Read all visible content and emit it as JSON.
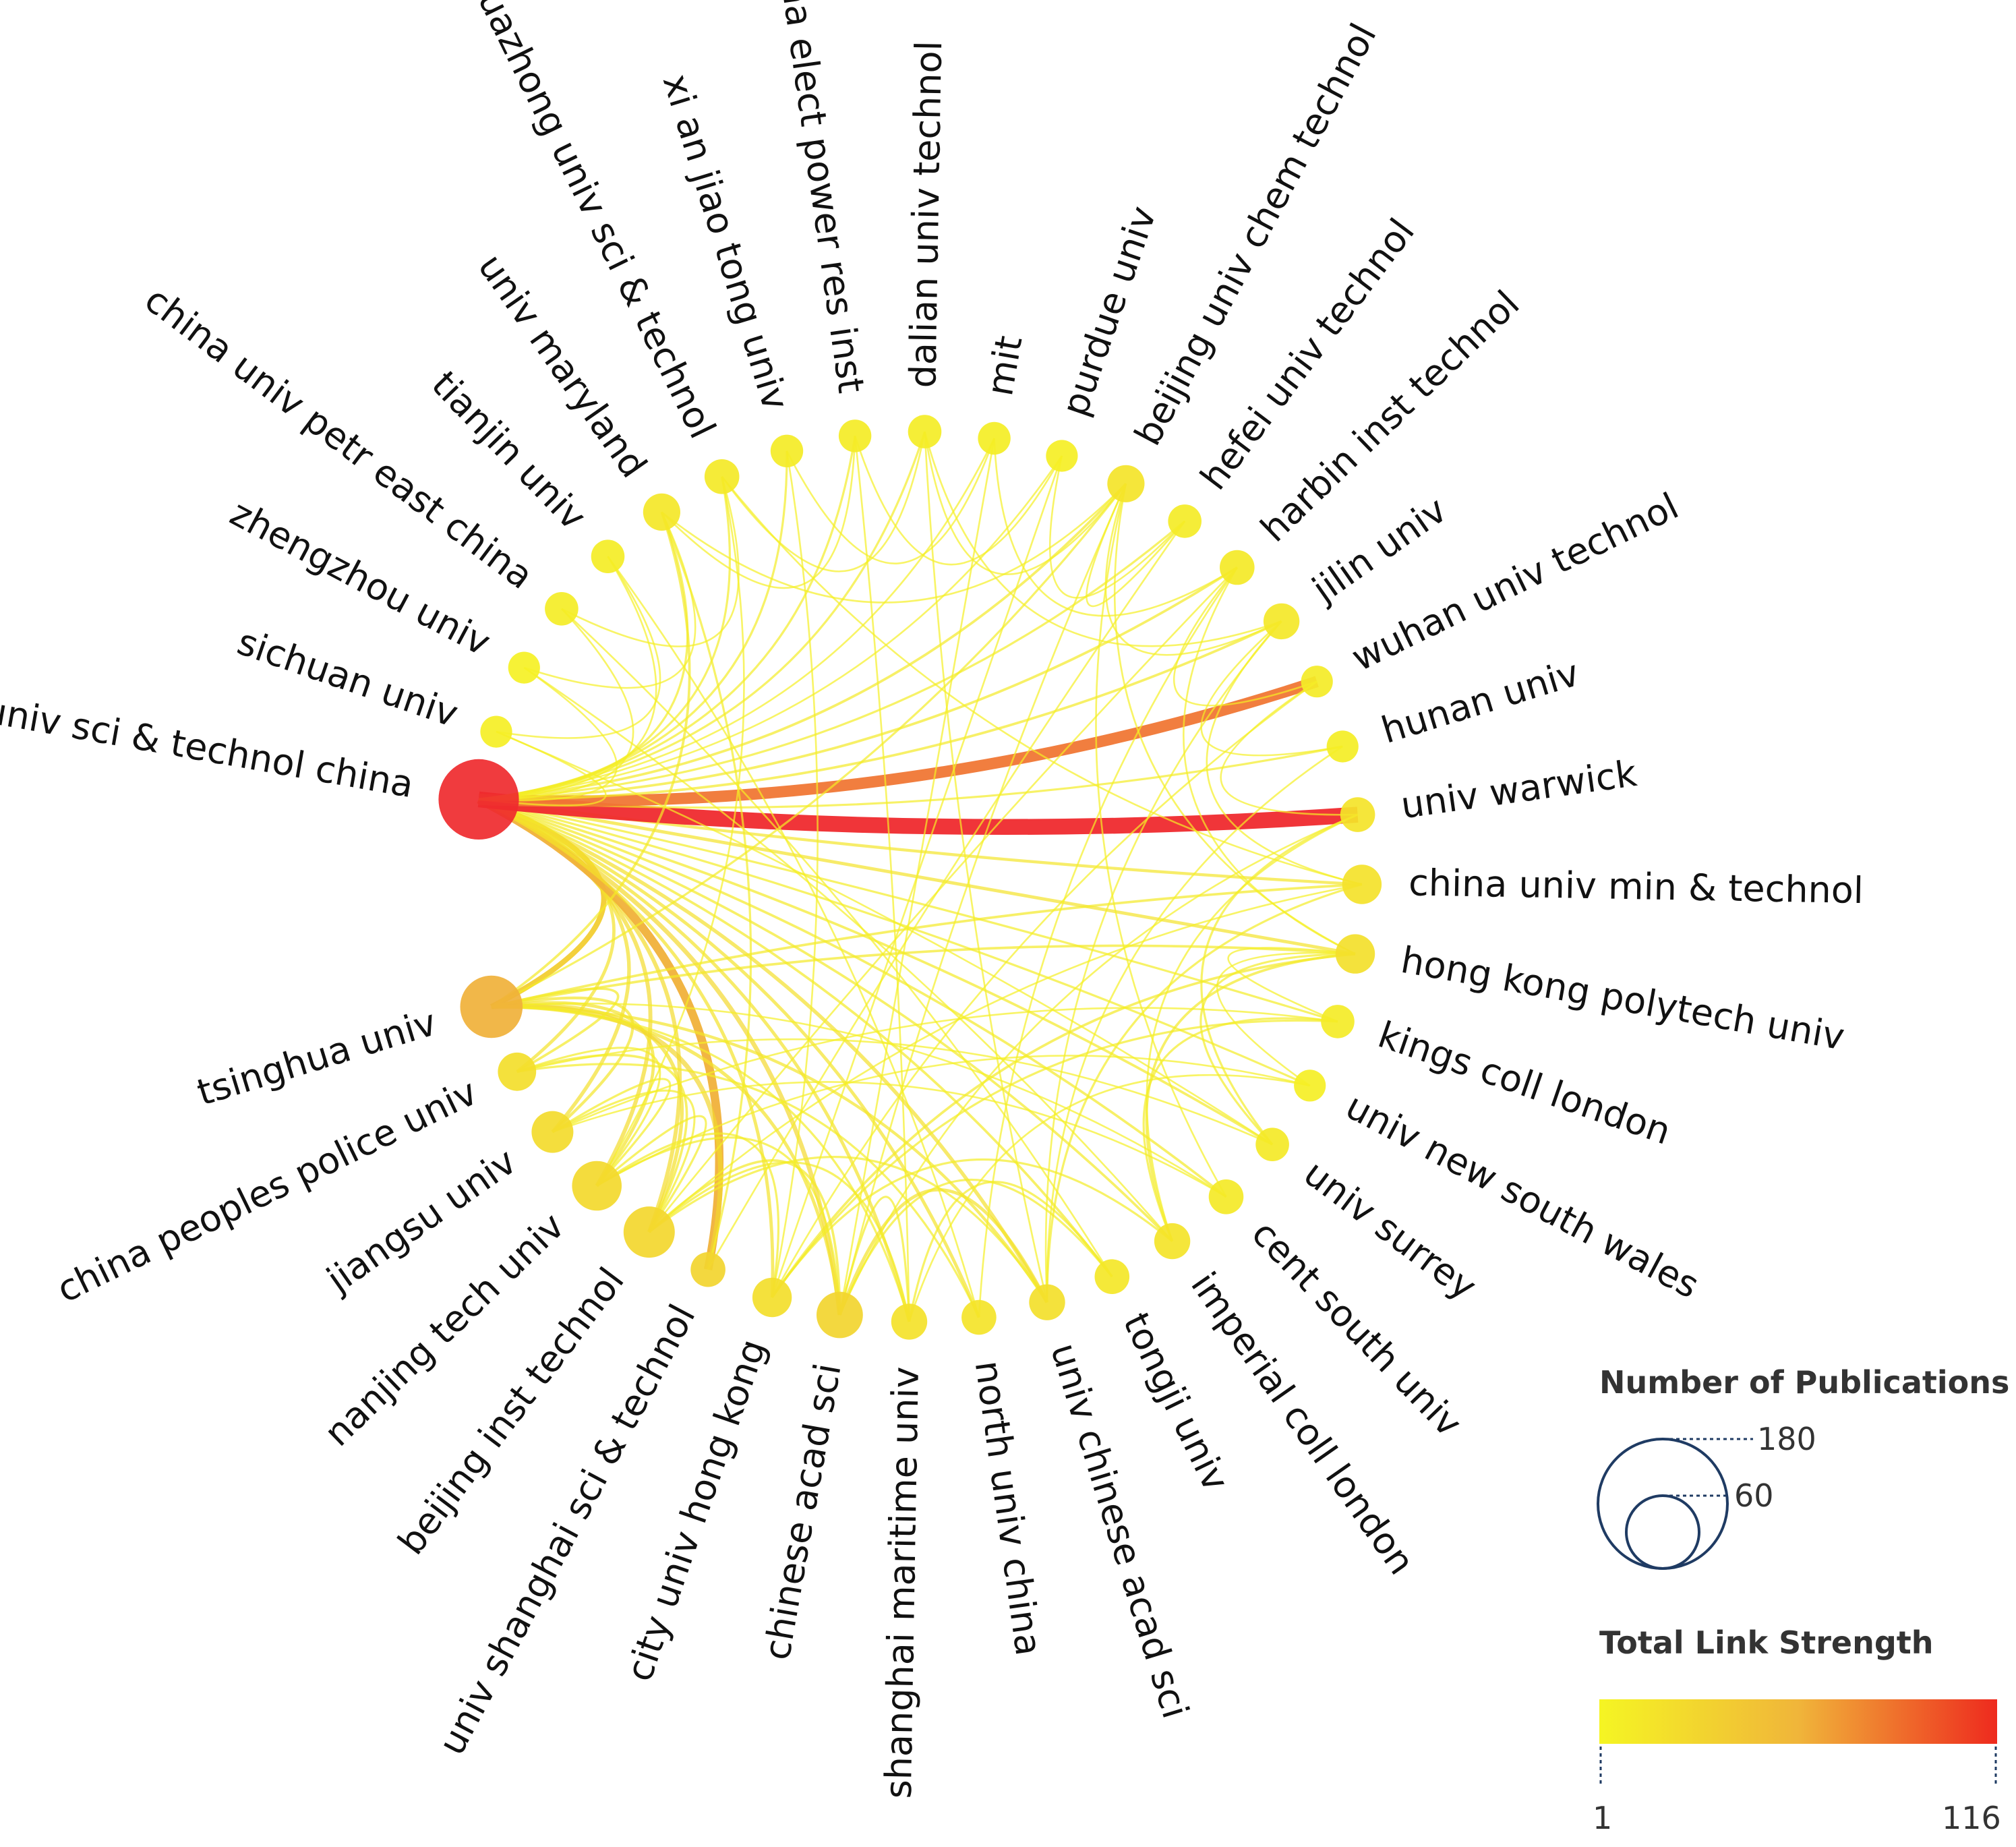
{
  "colors": {
    "low": "#f5f523",
    "mid": "#f0b53a",
    "high": "#ef3a4a",
    "legend_outline": "#1f3b63"
  },
  "chart_data": {
    "type": "chord",
    "nodes": [
      {
        "name": "univ sci & technol china",
        "size": 180,
        "strength": 116
      },
      {
        "name": "sichuan univ",
        "size": 8,
        "strength": 6
      },
      {
        "name": "zhengzhou univ",
        "size": 8,
        "strength": 5
      },
      {
        "name": "china univ petr east china",
        "size": 10,
        "strength": 8
      },
      {
        "name": "tianjin univ",
        "size": 10,
        "strength": 8
      },
      {
        "name": "univ maryland",
        "size": 16,
        "strength": 14
      },
      {
        "name": "huazhong univ sci & technol",
        "size": 12,
        "strength": 12
      },
      {
        "name": "xi an jiao tong univ",
        "size": 9,
        "strength": 9
      },
      {
        "name": "china elect power res inst",
        "size": 9,
        "strength": 9
      },
      {
        "name": "dalian univ technol",
        "size": 10,
        "strength": 8
      },
      {
        "name": "mit",
        "size": 9,
        "strength": 7
      },
      {
        "name": "purdue univ",
        "size": 8,
        "strength": 6
      },
      {
        "name": "beijing univ chem technol",
        "size": 16,
        "strength": 16
      },
      {
        "name": "hefei univ technol",
        "size": 10,
        "strength": 10
      },
      {
        "name": "harbin inst technol",
        "size": 12,
        "strength": 12
      },
      {
        "name": "jilin univ",
        "size": 14,
        "strength": 13
      },
      {
        "name": "wuhan univ technol",
        "size": 8,
        "strength": 10
      },
      {
        "name": "hunan univ",
        "size": 8,
        "strength": 7
      },
      {
        "name": "univ warwick",
        "size": 12,
        "strength": 16
      },
      {
        "name": "china univ min & technol",
        "size": 20,
        "strength": 18
      },
      {
        "name": "hong kong polytech univ",
        "size": 20,
        "strength": 20
      },
      {
        "name": "kings coll london",
        "size": 10,
        "strength": 10
      },
      {
        "name": "univ new south wales",
        "size": 8,
        "strength": 6
      },
      {
        "name": "univ surrey",
        "size": 10,
        "strength": 12
      },
      {
        "name": "cent south univ",
        "size": 12,
        "strength": 12
      },
      {
        "name": "imperial coll london",
        "size": 14,
        "strength": 16
      },
      {
        "name": "tongji univ",
        "size": 12,
        "strength": 14
      },
      {
        "name": "univ chinese acad sci",
        "size": 14,
        "strength": 20
      },
      {
        "name": "north univ china",
        "size": 12,
        "strength": 16
      },
      {
        "name": "shanghai maritime univ",
        "size": 14,
        "strength": 18
      },
      {
        "name": "chinese acad sci",
        "size": 36,
        "strength": 30
      },
      {
        "name": "city univ hong kong",
        "size": 20,
        "strength": 22
      },
      {
        "name": "univ shanghai sci & technol",
        "size": 12,
        "strength": 30
      },
      {
        "name": "beijing inst technol",
        "size": 50,
        "strength": 28
      },
      {
        "name": "nanjing tech univ",
        "size": 45,
        "strength": 26
      },
      {
        "name": "jiangsu univ",
        "size": 25,
        "strength": 24
      },
      {
        "name": "china peoples police univ",
        "size": 18,
        "strength": 22
      },
      {
        "name": "tsinghua univ",
        "size": 90,
        "strength": 60
      }
    ],
    "links": [
      {
        "s": 0,
        "t": 37,
        "w": 12
      },
      {
        "s": 0,
        "t": 36,
        "w": 6
      },
      {
        "s": 0,
        "t": 35,
        "w": 7
      },
      {
        "s": 0,
        "t": 34,
        "w": 8
      },
      {
        "s": 0,
        "t": 33,
        "w": 8
      },
      {
        "s": 0,
        "t": 32,
        "w": 20
      },
      {
        "s": 0,
        "t": 31,
        "w": 6
      },
      {
        "s": 0,
        "t": 30,
        "w": 9
      },
      {
        "s": 0,
        "t": 29,
        "w": 6
      },
      {
        "s": 0,
        "t": 28,
        "w": 6
      },
      {
        "s": 0,
        "t": 27,
        "w": 7
      },
      {
        "s": 0,
        "t": 26,
        "w": 4
      },
      {
        "s": 0,
        "t": 25,
        "w": 4
      },
      {
        "s": 0,
        "t": 24,
        "w": 4
      },
      {
        "s": 0,
        "t": 23,
        "w": 4
      },
      {
        "s": 0,
        "t": 22,
        "w": 3
      },
      {
        "s": 0,
        "t": 21,
        "w": 3
      },
      {
        "s": 0,
        "t": 20,
        "w": 6
      },
      {
        "s": 0,
        "t": 19,
        "w": 5
      },
      {
        "s": 0,
        "t": 18,
        "w": 40
      },
      {
        "s": 0,
        "t": 17,
        "w": 3
      },
      {
        "s": 0,
        "t": 16,
        "w": 28
      },
      {
        "s": 0,
        "t": 15,
        "w": 4
      },
      {
        "s": 0,
        "t": 14,
        "w": 4
      },
      {
        "s": 0,
        "t": 13,
        "w": 3
      },
      {
        "s": 0,
        "t": 12,
        "w": 4
      },
      {
        "s": 0,
        "t": 11,
        "w": 2
      },
      {
        "s": 0,
        "t": 10,
        "w": 2
      },
      {
        "s": 0,
        "t": 9,
        "w": 3
      },
      {
        "s": 0,
        "t": 8,
        "w": 3
      },
      {
        "s": 0,
        "t": 7,
        "w": 3
      },
      {
        "s": 0,
        "t": 6,
        "w": 3
      },
      {
        "s": 0,
        "t": 5,
        "w": 3
      },
      {
        "s": 0,
        "t": 4,
        "w": 2
      },
      {
        "s": 0,
        "t": 3,
        "w": 2
      },
      {
        "s": 0,
        "t": 2,
        "w": 2
      },
      {
        "s": 0,
        "t": 1,
        "w": 2
      },
      {
        "s": 37,
        "t": 35,
        "w": 5
      },
      {
        "s": 37,
        "t": 34,
        "w": 6
      },
      {
        "s": 37,
        "t": 33,
        "w": 7
      },
      {
        "s": 37,
        "t": 32,
        "w": 10
      },
      {
        "s": 37,
        "t": 30,
        "w": 6
      },
      {
        "s": 37,
        "t": 27,
        "w": 5
      },
      {
        "s": 37,
        "t": 20,
        "w": 4
      },
      {
        "s": 37,
        "t": 19,
        "w": 4
      },
      {
        "s": 37,
        "t": 12,
        "w": 3
      },
      {
        "s": 37,
        "t": 5,
        "w": 4
      },
      {
        "s": 37,
        "t": 36,
        "w": 4
      },
      {
        "s": 37,
        "t": 29,
        "w": 3
      },
      {
        "s": 36,
        "t": 33,
        "w": 4
      },
      {
        "s": 36,
        "t": 34,
        "w": 3
      },
      {
        "s": 36,
        "t": 28,
        "w": 3
      },
      {
        "s": 35,
        "t": 34,
        "w": 3
      },
      {
        "s": 35,
        "t": 33,
        "w": 3
      },
      {
        "s": 35,
        "t": 24,
        "w": 2
      },
      {
        "s": 34,
        "t": 33,
        "w": 3
      },
      {
        "s": 34,
        "t": 31,
        "w": 3
      },
      {
        "s": 34,
        "t": 30,
        "w": 3
      },
      {
        "s": 33,
        "t": 30,
        "w": 4
      },
      {
        "s": 33,
        "t": 27,
        "w": 3
      },
      {
        "s": 33,
        "t": 29,
        "w": 3
      },
      {
        "s": 31,
        "t": 20,
        "w": 4
      },
      {
        "s": 31,
        "t": 21,
        "w": 3
      },
      {
        "s": 31,
        "t": 25,
        "w": 3
      },
      {
        "s": 30,
        "t": 27,
        "w": 6
      },
      {
        "s": 30,
        "t": 29,
        "w": 3
      },
      {
        "s": 30,
        "t": 26,
        "w": 3
      },
      {
        "s": 29,
        "t": 26,
        "w": 3
      },
      {
        "s": 29,
        "t": 22,
        "w": 2
      },
      {
        "s": 28,
        "t": 14,
        "w": 2
      },
      {
        "s": 27,
        "t": 19,
        "w": 3
      },
      {
        "s": 27,
        "t": 15,
        "w": 2
      },
      {
        "s": 25,
        "t": 20,
        "w": 4
      },
      {
        "s": 25,
        "t": 21,
        "w": 3
      },
      {
        "s": 25,
        "t": 18,
        "w": 2
      },
      {
        "s": 24,
        "t": 12,
        "w": 2
      },
      {
        "s": 23,
        "t": 18,
        "w": 3
      },
      {
        "s": 23,
        "t": 20,
        "w": 3
      },
      {
        "s": 22,
        "t": 20,
        "w": 2
      },
      {
        "s": 21,
        "t": 20,
        "w": 2
      },
      {
        "s": 20,
        "t": 14,
        "w": 2
      },
      {
        "s": 20,
        "t": 12,
        "w": 2
      },
      {
        "s": 19,
        "t": 15,
        "w": 2
      },
      {
        "s": 19,
        "t": 6,
        "w": 2
      },
      {
        "s": 18,
        "t": 16,
        "w": 2
      },
      {
        "s": 17,
        "t": 15,
        "w": 2
      },
      {
        "s": 16,
        "t": 14,
        "w": 2
      },
      {
        "s": 15,
        "t": 12,
        "w": 2
      },
      {
        "s": 15,
        "t": 9,
        "w": 2
      },
      {
        "s": 14,
        "t": 10,
        "w": 2
      },
      {
        "s": 13,
        "t": 12,
        "w": 2
      },
      {
        "s": 13,
        "t": 11,
        "w": 2
      },
      {
        "s": 12,
        "t": 9,
        "w": 2
      },
      {
        "s": 12,
        "t": 5,
        "w": 2
      },
      {
        "s": 11,
        "t": 8,
        "w": 2
      },
      {
        "s": 10,
        "t": 7,
        "w": 2
      },
      {
        "s": 9,
        "t": 6,
        "w": 2
      },
      {
        "s": 8,
        "t": 5,
        "w": 2
      },
      {
        "s": 6,
        "t": 3,
        "w": 2
      },
      {
        "s": 5,
        "t": 2,
        "w": 2
      },
      {
        "s": 4,
        "t": 1,
        "w": 2
      },
      {
        "s": 3,
        "t": 26,
        "w": 2
      },
      {
        "s": 4,
        "t": 28,
        "w": 2
      },
      {
        "s": 7,
        "t": 31,
        "w": 2
      },
      {
        "s": 8,
        "t": 29,
        "w": 2
      },
      {
        "s": 9,
        "t": 27,
        "w": 2
      },
      {
        "s": 10,
        "t": 30,
        "w": 2
      },
      {
        "s": 11,
        "t": 31,
        "w": 2
      },
      {
        "s": 12,
        "t": 30,
        "w": 2
      },
      {
        "s": 13,
        "t": 32,
        "w": 2
      },
      {
        "s": 14,
        "t": 33,
        "w": 2
      },
      {
        "s": 6,
        "t": 34,
        "w": 2
      },
      {
        "s": 5,
        "t": 32,
        "w": 3
      },
      {
        "s": 1,
        "t": 23,
        "w": 2
      },
      {
        "s": 2,
        "t": 25,
        "w": 2
      },
      {
        "s": 16,
        "t": 31,
        "w": 2
      },
      {
        "s": 17,
        "t": 27,
        "w": 2
      },
      {
        "s": 18,
        "t": 30,
        "w": 2
      },
      {
        "s": 19,
        "t": 33,
        "w": 2
      },
      {
        "s": 21,
        "t": 35,
        "w": 2
      },
      {
        "s": 22,
        "t": 34,
        "w": 2
      },
      {
        "s": 23,
        "t": 36,
        "w": 2
      },
      {
        "s": 24,
        "t": 37,
        "w": 2
      }
    ]
  },
  "legend": {
    "size_title": "Number of Publications",
    "size_values": [
      "180",
      "60"
    ],
    "color_title": "Total Link Strength",
    "color_min": "1",
    "color_max": "116"
  }
}
